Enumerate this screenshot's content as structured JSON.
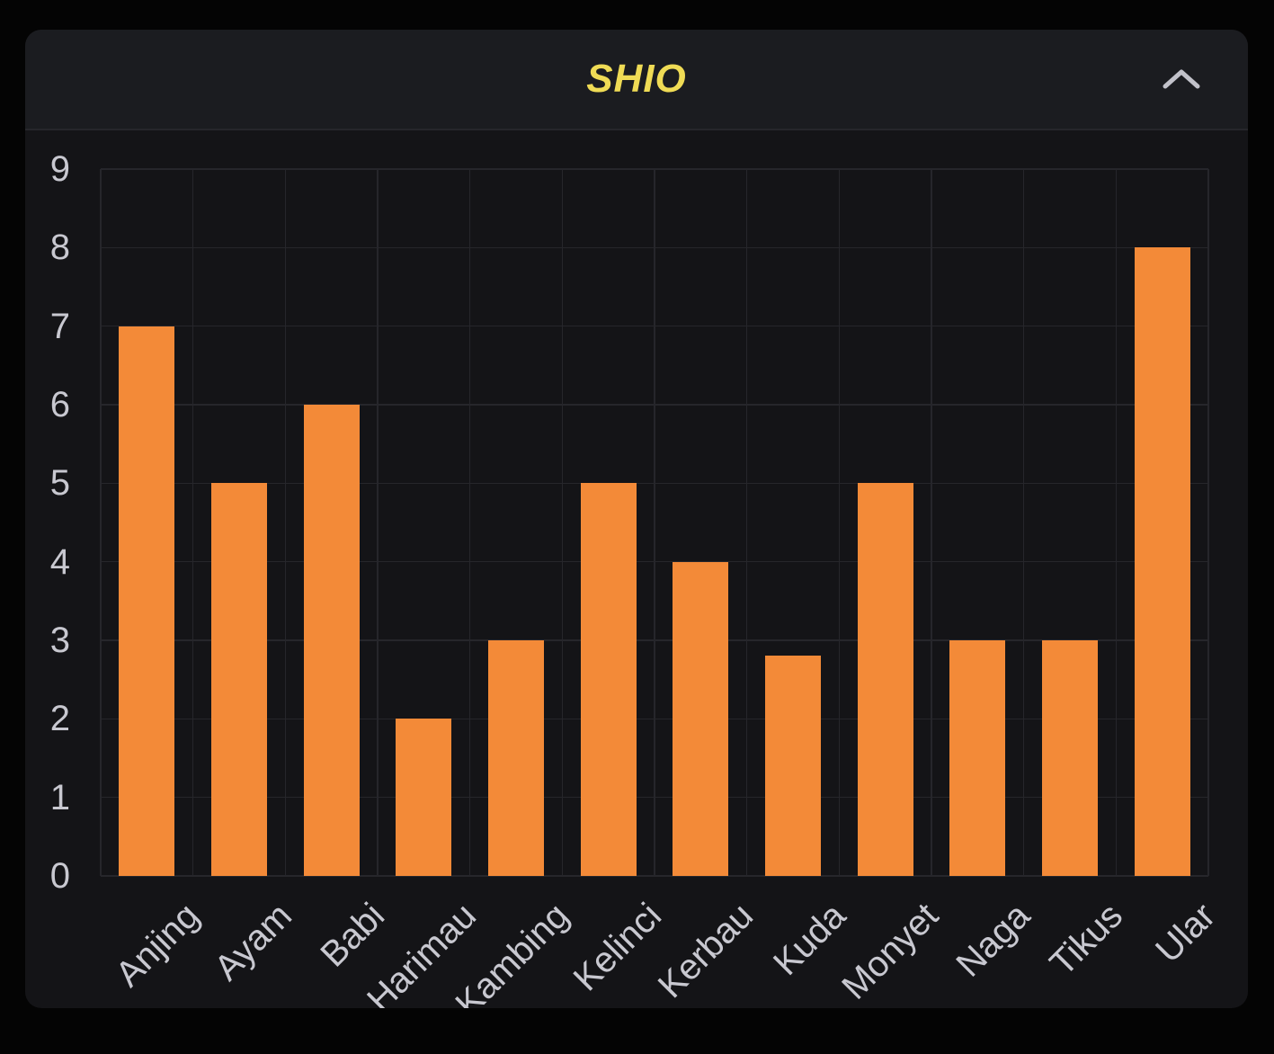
{
  "panel": {
    "title": "SHIO",
    "header": {
      "collapse_icon": "chevron-up"
    }
  },
  "colors": {
    "page_bg": "#040404",
    "panel_header_bg": "#1B1C20",
    "panel_body_bg": "#141417",
    "divider": "#26262B",
    "grid": "#26262B",
    "bar": "#F38A38",
    "axis_text": "#C8C8D0",
    "title_text": "#EFDB55",
    "chevron": "#C2C2CA"
  },
  "chart_data": {
    "type": "bar",
    "title": "SHIO",
    "categories": [
      "Anjing",
      "Ayam",
      "Babi",
      "Harimau",
      "Kambing",
      "Kelinci",
      "Kerbau",
      "Kuda",
      "Monyet",
      "Naga",
      "Tikus",
      "Ular"
    ],
    "values": [
      7,
      5,
      6,
      2,
      3,
      5,
      4,
      2.8,
      5,
      3,
      3,
      8
    ],
    "y_ticks": [
      0,
      1,
      2,
      3,
      4,
      5,
      6,
      7,
      8,
      9
    ],
    "ylim": [
      0,
      9
    ],
    "xlabel": "",
    "ylabel": "",
    "grid": true,
    "legend": "none",
    "x_label_rotation": -45
  }
}
